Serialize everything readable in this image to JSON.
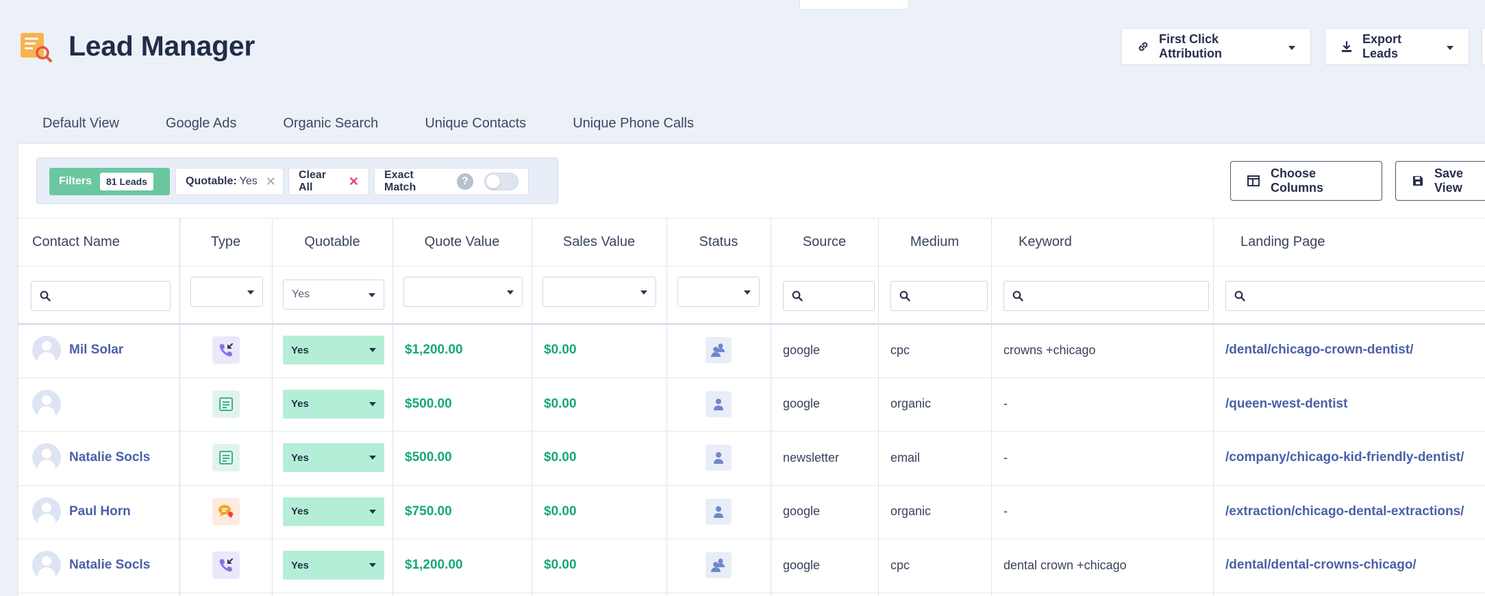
{
  "header": {
    "title": "Lead Manager",
    "attribution_label": "First Click Attribution",
    "export_label": "Export Leads"
  },
  "views": [
    {
      "label": "Default View"
    },
    {
      "label": "Google Ads"
    },
    {
      "label": "Organic Search"
    },
    {
      "label": "Unique Contacts"
    },
    {
      "label": "Unique Phone Calls"
    }
  ],
  "filters": {
    "filters_label": "Filters",
    "count_label": "81 Leads",
    "quotable_key": "Quotable:",
    "quotable_value": "Yes",
    "clear_all_label": "Clear All",
    "exact_match_label": "Exact Match",
    "help_glyph": "?",
    "exact_match_enabled": false
  },
  "panel_actions": {
    "choose_columns_label": "Choose Columns",
    "save_view_label": "Save View"
  },
  "columns": [
    {
      "label": "Contact Name"
    },
    {
      "label": "Type"
    },
    {
      "label": "Quotable"
    },
    {
      "label": "Quote Value"
    },
    {
      "label": "Sales Value"
    },
    {
      "label": "Status"
    },
    {
      "label": "Source"
    },
    {
      "label": "Medium"
    },
    {
      "label": "Keyword"
    },
    {
      "label": "Landing Page"
    }
  ],
  "column_filters": {
    "quotable_selected": "Yes"
  },
  "rows": [
    {
      "contact": "Mil Solar",
      "type_icon": "phone-call-icon",
      "quotable": "Yes",
      "quote_value": "$1,200.00",
      "sales_value": "$0.00",
      "status_icon": "multiple-users-icon",
      "source": "google",
      "medium": "cpc",
      "keyword": "crowns +chicago",
      "landing_page": "/dental/chicago-crown-dentist/"
    },
    {
      "contact": "",
      "type_icon": "form-icon",
      "quotable": "Yes",
      "quote_value": "$500.00",
      "sales_value": "$0.00",
      "status_icon": "single-user-icon",
      "source": "google",
      "medium": "organic",
      "keyword": "-",
      "landing_page": "/queen-west-dentist"
    },
    {
      "contact": "Natalie Socls",
      "type_icon": "form-icon",
      "quotable": "Yes",
      "quote_value": "$500.00",
      "sales_value": "$0.00",
      "status_icon": "single-user-icon",
      "source": "newsletter",
      "medium": "email",
      "keyword": "-",
      "landing_page": "/company/chicago-kid-friendly-dentist/"
    },
    {
      "contact": "Paul Horn",
      "type_icon": "chat-icon",
      "quotable": "Yes",
      "quote_value": "$750.00",
      "sales_value": "$0.00",
      "status_icon": "single-user-icon",
      "source": "google",
      "medium": "organic",
      "keyword": "-",
      "landing_page": "/extraction/chicago-dental-extractions/"
    },
    {
      "contact": "Natalie Socls",
      "type_icon": "phone-call-icon",
      "quotable": "Yes",
      "quote_value": "$1,200.00",
      "sales_value": "$0.00",
      "status_icon": "multiple-users-icon",
      "source": "google",
      "medium": "cpc",
      "keyword": "dental crown +chicago",
      "landing_page": "/dental/dental-crowns-chicago/"
    }
  ],
  "colors": {
    "accent_green": "#6bc79f",
    "money_green": "#16a877",
    "link_blue": "#4a60a8",
    "quotable_bg": "#b5eed6"
  }
}
